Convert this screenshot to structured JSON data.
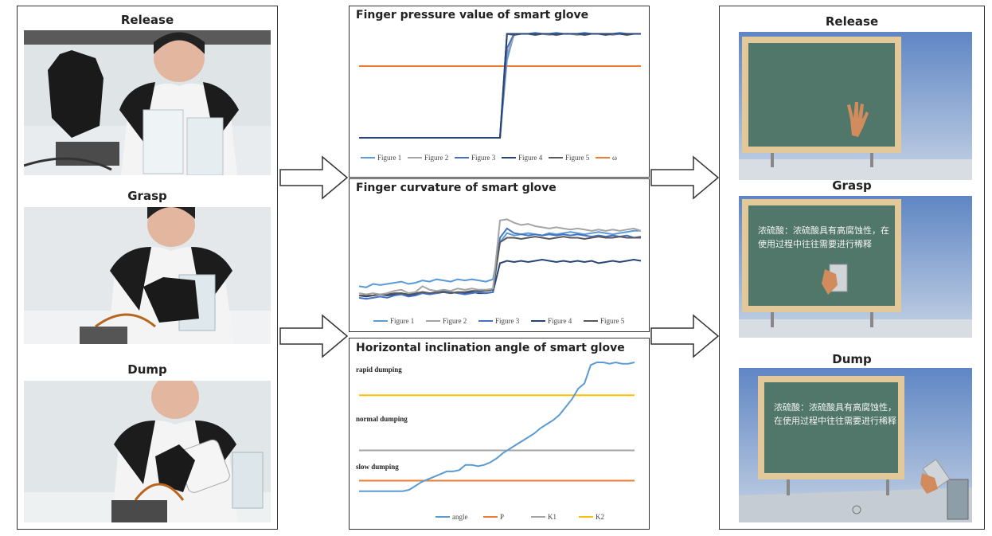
{
  "left": {
    "titles": [
      "Release",
      "Grasp",
      "Dump"
    ]
  },
  "right": {
    "titles": [
      "Release",
      "Grasp",
      "Dump"
    ],
    "board_text": "浓硫酸：浓硫酸具有高腐蚀性，在使用过程中往往需要进行稀释"
  },
  "colors": {
    "figure1": "#5b9bd5",
    "figure2": "#a5a5a5",
    "figure3": "#4472c4",
    "figure4": "#264478",
    "figure5": "#595959",
    "omega": "#ed7d31",
    "angle": "#5b9bd5",
    "P": "#ed7d31",
    "K1": "#a5a5a5",
    "K2": "#ffc000"
  },
  "chart_data": [
    {
      "type": "line",
      "title": "Finger pressure value of smart glove",
      "legend": [
        "Figure 1",
        "Figure 2",
        "Figure 3",
        "Figure 4",
        "Figure 5",
        "ω"
      ],
      "series": [
        {
          "name": "Figure 1",
          "values": [
            0.1,
            0.1,
            0.1,
            0.1,
            0.1,
            0.1,
            0.1,
            0.1,
            0.1,
            0.1,
            0.1,
            0.1,
            0.1,
            0.1,
            0.1,
            0.1,
            0.1,
            0.1,
            0.1,
            0.1,
            0.1,
            0.75,
            0.97,
            0.97,
            0.97,
            0.98,
            0.97,
            0.97,
            0.98,
            0.97,
            0.97,
            0.97,
            0.98,
            0.97,
            0.97,
            0.97,
            0.97,
            0.98,
            0.97,
            0.97,
            0.97
          ]
        },
        {
          "name": "Figure 2",
          "values": [
            0.1,
            0.1,
            0.1,
            0.1,
            0.1,
            0.1,
            0.1,
            0.1,
            0.1,
            0.1,
            0.1,
            0.1,
            0.1,
            0.1,
            0.1,
            0.1,
            0.1,
            0.1,
            0.1,
            0.1,
            0.1,
            0.8,
            0.96,
            0.97,
            0.97,
            0.97,
            0.97,
            0.96,
            0.97,
            0.97,
            0.97,
            0.96,
            0.97,
            0.97,
            0.97,
            0.97,
            0.96,
            0.97,
            0.97,
            0.97,
            0.97
          ]
        },
        {
          "name": "Figure 3",
          "values": [
            0.1,
            0.1,
            0.1,
            0.1,
            0.1,
            0.1,
            0.1,
            0.1,
            0.1,
            0.1,
            0.1,
            0.1,
            0.1,
            0.1,
            0.1,
            0.1,
            0.1,
            0.1,
            0.1,
            0.1,
            0.1,
            0.85,
            0.97,
            0.97,
            0.97,
            0.97,
            0.97,
            0.97,
            0.97,
            0.97,
            0.97,
            0.97,
            0.97,
            0.97,
            0.97,
            0.97,
            0.97,
            0.97,
            0.97,
            0.97,
            0.97
          ]
        },
        {
          "name": "Figure 4",
          "values": [
            0.1,
            0.1,
            0.1,
            0.1,
            0.1,
            0.1,
            0.1,
            0.1,
            0.1,
            0.1,
            0.1,
            0.1,
            0.1,
            0.1,
            0.1,
            0.1,
            0.1,
            0.1,
            0.1,
            0.1,
            0.1,
            0.97,
            0.97,
            0.97,
            0.97,
            0.97,
            0.97,
            0.97,
            0.97,
            0.97,
            0.97,
            0.97,
            0.97,
            0.97,
            0.97,
            0.97,
            0.97,
            0.97,
            0.97,
            0.97,
            0.97
          ]
        },
        {
          "name": "Figure 5",
          "values": [
            0.1,
            0.1,
            0.1,
            0.1,
            0.1,
            0.1,
            0.1,
            0.1,
            0.1,
            0.1,
            0.1,
            0.1,
            0.1,
            0.1,
            0.1,
            0.1,
            0.1,
            0.1,
            0.1,
            0.1,
            0.1,
            0.97,
            0.96,
            0.97,
            0.97,
            0.96,
            0.97,
            0.97,
            0.96,
            0.97,
            0.97,
            0.97,
            0.96,
            0.97,
            0.97,
            0.96,
            0.97,
            0.97,
            0.96,
            0.97,
            0.97
          ]
        },
        {
          "name": "ω",
          "values": [
            0.7,
            0.7,
            0.7,
            0.7,
            0.7,
            0.7,
            0.7,
            0.7,
            0.7,
            0.7,
            0.7,
            0.7,
            0.7,
            0.7,
            0.7,
            0.7,
            0.7,
            0.7,
            0.7,
            0.7,
            0.7,
            0.7,
            0.7,
            0.7,
            0.7,
            0.7,
            0.7,
            0.7,
            0.7,
            0.7,
            0.7,
            0.7,
            0.7,
            0.7,
            0.7,
            0.7,
            0.7,
            0.7,
            0.7,
            0.7,
            0.7
          ]
        }
      ]
    },
    {
      "type": "line",
      "title": "Finger curvature of smart glove",
      "legend": [
        "Figure 1",
        "Figure 2",
        "Figure 3",
        "Figure 4",
        "Figure 5"
      ],
      "series": [
        {
          "name": "Figure 1",
          "values": [
            0.28,
            0.27,
            0.3,
            0.29,
            0.3,
            0.31,
            0.32,
            0.3,
            0.31,
            0.33,
            0.32,
            0.34,
            0.33,
            0.32,
            0.34,
            0.33,
            0.34,
            0.33,
            0.32,
            0.34,
            0.66,
            0.74,
            0.72,
            0.73,
            0.74,
            0.73,
            0.72,
            0.74,
            0.73,
            0.74,
            0.75,
            0.74,
            0.73,
            0.74,
            0.75,
            0.74,
            0.73,
            0.74,
            0.75,
            0.76,
            0.76
          ]
        },
        {
          "name": "Figure 2",
          "values": [
            0.22,
            0.21,
            0.22,
            0.21,
            0.22,
            0.24,
            0.25,
            0.22,
            0.23,
            0.28,
            0.25,
            0.24,
            0.25,
            0.24,
            0.26,
            0.25,
            0.26,
            0.25,
            0.25,
            0.26,
            0.85,
            0.86,
            0.83,
            0.81,
            0.82,
            0.8,
            0.79,
            0.78,
            0.79,
            0.78,
            0.77,
            0.78,
            0.77,
            0.76,
            0.77,
            0.76,
            0.77,
            0.76,
            0.77,
            0.78,
            0.76
          ]
        },
        {
          "name": "Figure 3",
          "values": [
            0.18,
            0.17,
            0.18,
            0.19,
            0.18,
            0.2,
            0.21,
            0.19,
            0.2,
            0.22,
            0.21,
            0.22,
            0.24,
            0.23,
            0.22,
            0.21,
            0.22,
            0.23,
            0.22,
            0.23,
            0.7,
            0.78,
            0.74,
            0.73,
            0.72,
            0.73,
            0.72,
            0.73,
            0.72,
            0.73,
            0.72,
            0.73,
            0.72,
            0.71,
            0.72,
            0.71,
            0.72,
            0.71,
            0.72,
            0.7,
            0.71
          ]
        },
        {
          "name": "Figure 4",
          "values": [
            0.2,
            0.19,
            0.2,
            0.21,
            0.2,
            0.21,
            0.22,
            0.2,
            0.21,
            0.23,
            0.22,
            0.22,
            0.23,
            0.22,
            0.23,
            0.22,
            0.23,
            0.22,
            0.22,
            0.23,
            0.48,
            0.5,
            0.49,
            0.5,
            0.49,
            0.5,
            0.51,
            0.5,
            0.49,
            0.5,
            0.49,
            0.5,
            0.49,
            0.5,
            0.48,
            0.49,
            0.5,
            0.49,
            0.5,
            0.51,
            0.5
          ]
        },
        {
          "name": "Figure 5",
          "values": [
            0.2,
            0.2,
            0.2,
            0.21,
            0.21,
            0.22,
            0.22,
            0.21,
            0.22,
            0.23,
            0.22,
            0.23,
            0.23,
            0.22,
            0.23,
            0.23,
            0.24,
            0.24,
            0.24,
            0.25,
            0.66,
            0.7,
            0.7,
            0.69,
            0.7,
            0.71,
            0.7,
            0.69,
            0.7,
            0.71,
            0.7,
            0.7,
            0.69,
            0.7,
            0.71,
            0.7,
            0.7,
            0.71,
            0.7,
            0.7,
            0.7
          ]
        }
      ]
    },
    {
      "type": "line",
      "title": "Horizontal inclination angle of smart glove",
      "legend": [
        "angle",
        "P",
        "K1",
        "K2"
      ],
      "zones": [
        "rapid dumping",
        "normal dumping",
        "slow dumping"
      ],
      "series": [
        {
          "name": "angle",
          "values": [
            0.02,
            0.02,
            0.02,
            0.02,
            0.02,
            0.02,
            0.02,
            0.02,
            0.03,
            0.06,
            0.09,
            0.11,
            0.13,
            0.15,
            0.17,
            0.17,
            0.18,
            0.22,
            0.22,
            0.21,
            0.22,
            0.24,
            0.27,
            0.31,
            0.34,
            0.37,
            0.4,
            0.43,
            0.46,
            0.5,
            0.53,
            0.56,
            0.6,
            0.66,
            0.72,
            0.8,
            0.84,
            0.98,
            1.0,
            1.0,
            0.99,
            1.0,
            0.99,
            0.99,
            1.0
          ]
        },
        {
          "name": "P",
          "values": [
            0.1,
            0.1,
            0.1,
            0.1,
            0.1,
            0.1,
            0.1,
            0.1,
            0.1,
            0.1,
            0.1,
            0.1,
            0.1,
            0.1,
            0.1,
            0.1,
            0.1,
            0.1,
            0.1,
            0.1,
            0.1,
            0.1,
            0.1,
            0.1,
            0.1,
            0.1,
            0.1,
            0.1,
            0.1,
            0.1,
            0.1,
            0.1,
            0.1,
            0.1,
            0.1,
            0.1,
            0.1,
            0.1,
            0.1,
            0.1,
            0.1,
            0.1,
            0.1,
            0.1,
            0.1
          ]
        },
        {
          "name": "K1",
          "values": [
            0.33,
            0.33,
            0.33,
            0.33,
            0.33,
            0.33,
            0.33,
            0.33,
            0.33,
            0.33,
            0.33,
            0.33,
            0.33,
            0.33,
            0.33,
            0.33,
            0.33,
            0.33,
            0.33,
            0.33,
            0.33,
            0.33,
            0.33,
            0.33,
            0.33,
            0.33,
            0.33,
            0.33,
            0.33,
            0.33,
            0.33,
            0.33,
            0.33,
            0.33,
            0.33,
            0.33,
            0.33,
            0.33,
            0.33,
            0.33,
            0.33,
            0.33,
            0.33,
            0.33,
            0.33
          ]
        },
        {
          "name": "K2",
          "values": [
            0.75,
            0.75,
            0.75,
            0.75,
            0.75,
            0.75,
            0.75,
            0.75,
            0.75,
            0.75,
            0.75,
            0.75,
            0.75,
            0.75,
            0.75,
            0.75,
            0.75,
            0.75,
            0.75,
            0.75,
            0.75,
            0.75,
            0.75,
            0.75,
            0.75,
            0.75,
            0.75,
            0.75,
            0.75,
            0.75,
            0.75,
            0.75,
            0.75,
            0.75,
            0.75,
            0.75,
            0.75,
            0.75,
            0.75,
            0.75,
            0.75,
            0.75,
            0.75,
            0.75,
            0.75
          ]
        }
      ]
    }
  ]
}
